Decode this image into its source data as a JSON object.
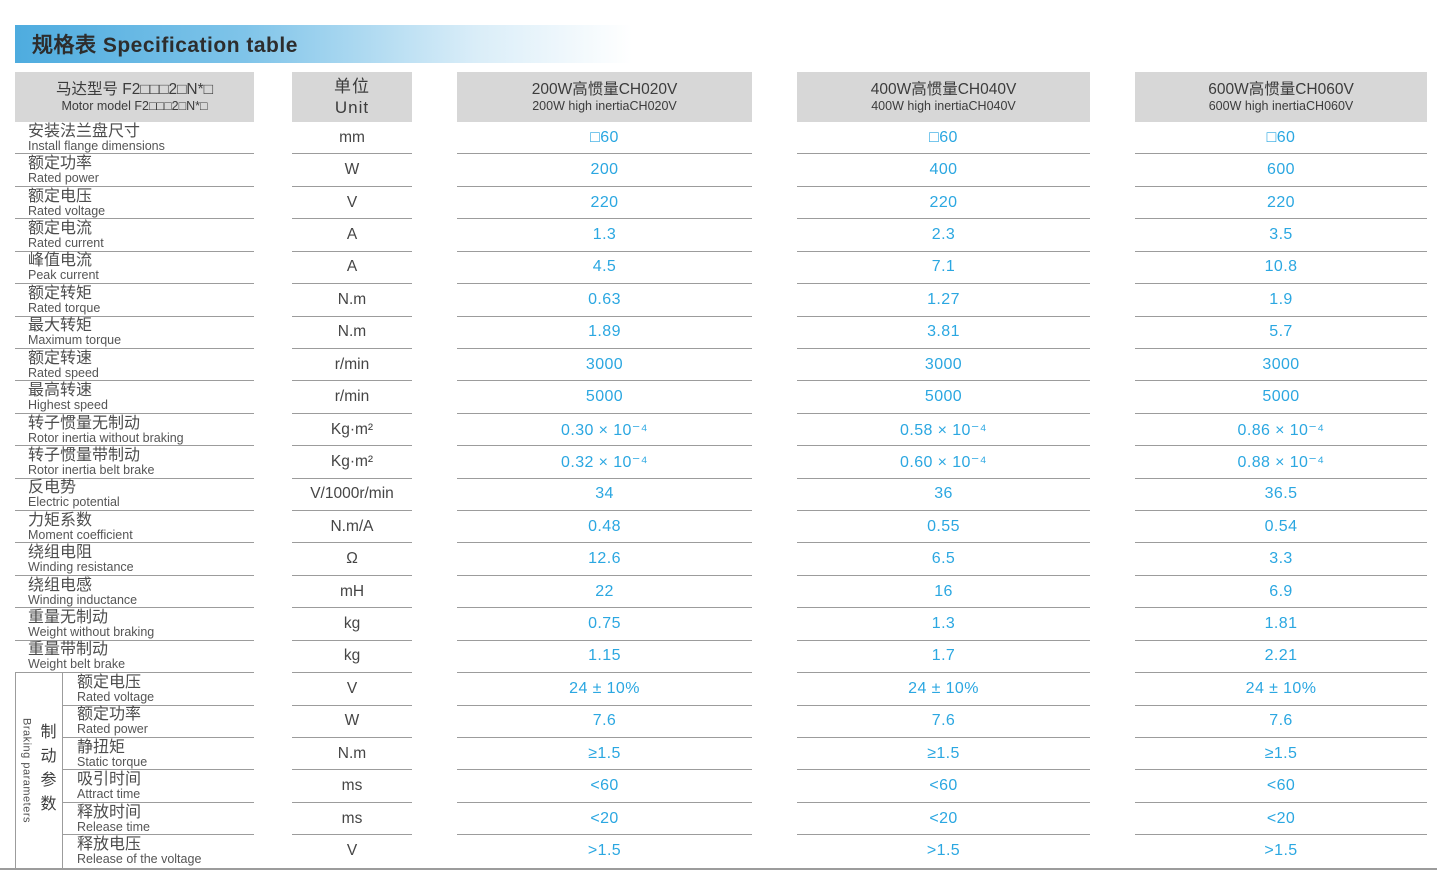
{
  "title": "规格表 Specification table",
  "header": {
    "model_zh": "马达型号 F2□□□2□N*□",
    "model_en": "Motor model F2□□□2□N*□",
    "unit_zh": "单位",
    "unit_en": "Unit",
    "columns": [
      {
        "zh": "200W高惯量CH020V",
        "en": "200W high inertiaCH020V"
      },
      {
        "zh": "400W高惯量CH040V",
        "en": "400W high inertiaCH040V"
      },
      {
        "zh": "600W高惯量CH060V",
        "en": "600W high inertiaCH060V"
      }
    ]
  },
  "braking_group": {
    "zh": "制动参数",
    "en": "Braking parameters"
  },
  "rows": [
    {
      "group": "main",
      "zh": "安装法兰盘尺寸",
      "en": "Install flange dimensions",
      "unit": "mm",
      "values": [
        "□60",
        "□60",
        "□60"
      ]
    },
    {
      "group": "main",
      "zh": "额定功率",
      "en": "Rated power",
      "unit": "W",
      "values": [
        "200",
        "400",
        "600"
      ]
    },
    {
      "group": "main",
      "zh": "额定电压",
      "en": "Rated voltage",
      "unit": "V",
      "values": [
        "220",
        "220",
        "220"
      ]
    },
    {
      "group": "main",
      "zh": "额定电流",
      "en": "Rated current",
      "unit": "A",
      "values": [
        "1.3",
        "2.3",
        "3.5"
      ]
    },
    {
      "group": "main",
      "zh": "峰值电流",
      "en": "Peak current",
      "unit": "A",
      "values": [
        "4.5",
        "7.1",
        "10.8"
      ]
    },
    {
      "group": "main",
      "zh": "额定转矩",
      "en": "Rated torque",
      "unit": "N.m",
      "values": [
        "0.63",
        "1.27",
        "1.9"
      ]
    },
    {
      "group": "main",
      "zh": "最大转矩",
      "en": "Maximum torque",
      "unit": "N.m",
      "values": [
        "1.89",
        "3.81",
        "5.7"
      ]
    },
    {
      "group": "main",
      "zh": "额定转速",
      "en": "Rated speed",
      "unit": "r/min",
      "values": [
        "3000",
        "3000",
        "3000"
      ]
    },
    {
      "group": "main",
      "zh": "最高转速",
      "en": "Highest speed",
      "unit": "r/min",
      "values": [
        "5000",
        "5000",
        "5000"
      ]
    },
    {
      "group": "main",
      "zh": "转子惯量无制动",
      "en": "Rotor inertia without braking",
      "unit": "Kg·m²",
      "values": [
        "0.30 × 10⁻⁴",
        "0.58 × 10⁻⁴",
        "0.86 × 10⁻⁴"
      ]
    },
    {
      "group": "main",
      "zh": "转子惯量带制动",
      "en": "Rotor inertia belt brake",
      "unit": "Kg·m²",
      "values": [
        "0.32 × 10⁻⁴",
        "0.60 × 10⁻⁴",
        "0.88 × 10⁻⁴"
      ]
    },
    {
      "group": "main",
      "zh": "反电势",
      "en": "Electric potential",
      "unit": "V/1000r/min",
      "values": [
        "34",
        "36",
        "36.5"
      ]
    },
    {
      "group": "main",
      "zh": "力矩系数",
      "en": "Moment coefficient",
      "unit": "N.m/A",
      "values": [
        "0.48",
        "0.55",
        "0.54"
      ]
    },
    {
      "group": "main",
      "zh": "绕组电阻",
      "en": "Winding resistance",
      "unit": "Ω",
      "values": [
        "12.6",
        "6.5",
        "3.3"
      ]
    },
    {
      "group": "main",
      "zh": "绕组电感",
      "en": "Winding inductance",
      "unit": "mH",
      "values": [
        "22",
        "16",
        "6.9"
      ]
    },
    {
      "group": "main",
      "zh": "重量无制动",
      "en": "Weight without braking",
      "unit": "kg",
      "values": [
        "0.75",
        "1.3",
        "1.81"
      ]
    },
    {
      "group": "main",
      "zh": "重量带制动",
      "en": "Weight belt brake",
      "unit": "kg",
      "values": [
        "1.15",
        "1.7",
        "2.21"
      ]
    },
    {
      "group": "braking",
      "zh": "额定电压",
      "en": "Rated voltage",
      "unit": "V",
      "values": [
        "24 ± 10%",
        "24 ± 10%",
        "24 ± 10%"
      ]
    },
    {
      "group": "braking",
      "zh": "额定功率",
      "en": "Rated power",
      "unit": "W",
      "values": [
        "7.6",
        "7.6",
        "7.6"
      ]
    },
    {
      "group": "braking",
      "zh": "静扭矩",
      "en": "Static torque",
      "unit": "N.m",
      "values": [
        "≥1.5",
        "≥1.5",
        "≥1.5"
      ]
    },
    {
      "group": "braking",
      "zh": "吸引时间",
      "en": "Attract time",
      "unit": "ms",
      "values": [
        "<60",
        "<60",
        "<60"
      ]
    },
    {
      "group": "braking",
      "zh": "释放时间",
      "en": "Release time",
      "unit": "ms",
      "values": [
        "<20",
        "<20",
        "<20"
      ]
    },
    {
      "group": "braking",
      "zh": "释放电压",
      "en": "Release of the voltage",
      "unit": "V",
      "values": [
        ">1.5",
        ">1.5",
        ">1.5"
      ]
    }
  ],
  "colors": {
    "value_text": "#2BA7E1",
    "header_bg": "#D7D7D7",
    "rule": "#9C9C9C",
    "title_bar_blue": "#4EACDF"
  }
}
